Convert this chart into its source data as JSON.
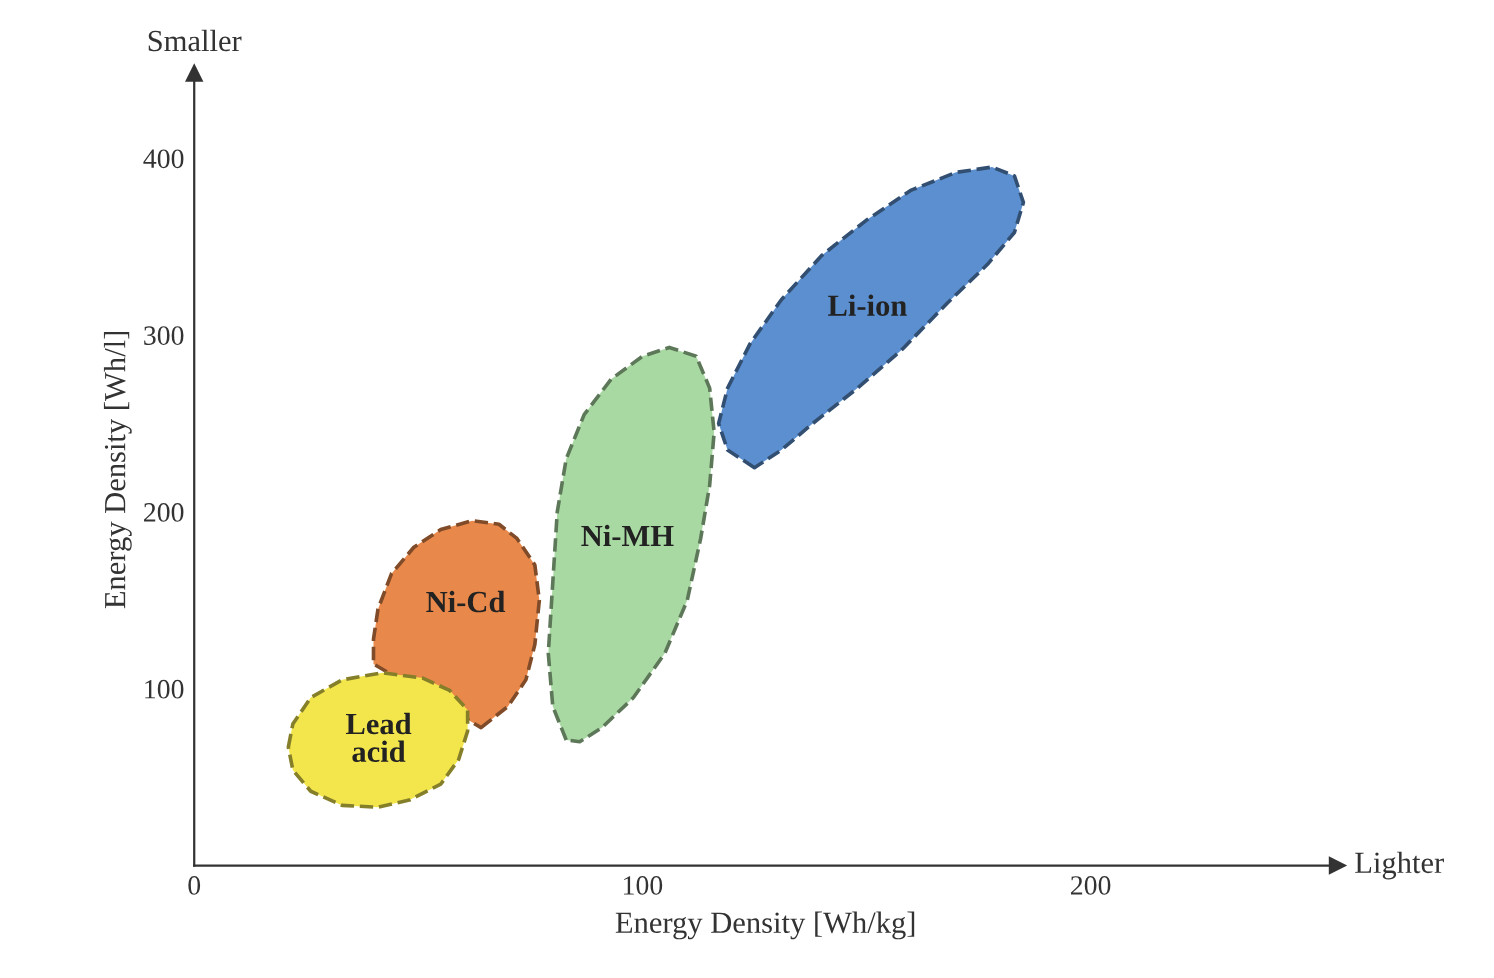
{
  "chart_data": {
    "type": "area",
    "xlabel": "Energy Density [Wh/kg]",
    "ylabel": "Energy Density [Wh/l]",
    "xlim": [
      0,
      255
    ],
    "ylim": [
      0,
      448
    ],
    "xticks": [
      0,
      100,
      200
    ],
    "yticks": [
      100,
      200,
      300,
      400
    ],
    "annotations": [
      "Smaller",
      "Lighter"
    ],
    "line_style": "dashed",
    "series": [
      {
        "name": "Ni-Cd",
        "color": "#e8884a",
        "x": [
          64,
          70,
          74,
          76,
          77,
          76,
          72,
          68,
          62,
          55,
          49,
          44,
          41,
          40,
          40
        ],
        "values": [
          78,
          90,
          105,
          125,
          150,
          170,
          185,
          193,
          195,
          190,
          180,
          165,
          145,
          128,
          114
        ]
      },
      {
        "name": "Lead\nacid",
        "color": "#f3e64c",
        "x": [
          21,
          22,
          26,
          33,
          42,
          51,
          57,
          61,
          61,
          59,
          55,
          48,
          41,
          33,
          26,
          22
        ],
        "values": [
          67,
          80,
          95,
          105,
          109,
          106,
          99,
          88,
          76,
          60,
          46,
          37,
          33,
          34,
          42,
          54
        ]
      },
      {
        "name": "Ni-MH",
        "color": "#a9d9a2",
        "x": [
          83,
          80,
          79,
          80,
          81,
          83,
          87,
          93,
          100,
          106,
          112,
          115,
          116,
          115,
          113,
          110,
          105,
          98,
          91,
          86
        ],
        "values": [
          71,
          90,
          120,
          160,
          200,
          230,
          255,
          275,
          288,
          293,
          288,
          270,
          245,
          215,
          185,
          150,
          120,
          95,
          78,
          70
        ]
      },
      {
        "name": "Li-ion",
        "color": "#5b8fd0",
        "x": [
          125,
          119,
          117,
          119,
          124,
          131,
          140,
          150,
          160,
          170,
          178,
          183,
          185,
          183,
          177,
          168,
          158,
          148,
          138,
          131
        ],
        "values": [
          225,
          235,
          250,
          270,
          295,
          320,
          345,
          365,
          382,
          392,
          395,
          390,
          375,
          358,
          340,
          318,
          292,
          270,
          250,
          235
        ]
      }
    ]
  }
}
